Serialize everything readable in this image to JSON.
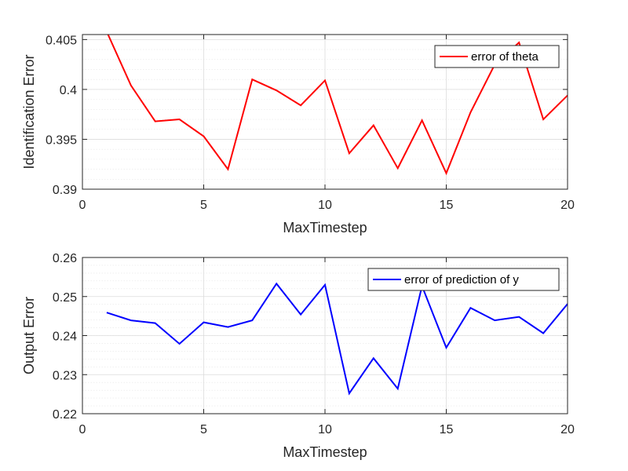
{
  "chart_data": [
    {
      "type": "line",
      "xlabel": "MaxTimestep",
      "ylabel": "Identification Error",
      "xlim": [
        0,
        20
      ],
      "ylim": [
        0.39,
        0.4055
      ],
      "xticks": [
        0,
        5,
        10,
        15,
        20
      ],
      "xtick_labels": [
        "0",
        "5",
        "10",
        "15",
        "20"
      ],
      "yticks": [
        0.39,
        0.395,
        0.4,
        0.405
      ],
      "ytick_labels": [
        "0.39",
        "0.395",
        "0.4",
        "0.405"
      ],
      "minor_grid_step": 0.001,
      "grid": true,
      "legend_position": "top-right",
      "series": [
        {
          "name": "error of theta",
          "color": "#ff0000",
          "x": [
            1,
            2,
            3,
            4,
            5,
            6,
            7,
            8,
            9,
            10,
            11,
            12,
            13,
            14,
            15,
            16,
            17,
            18,
            19,
            20
          ],
          "y": [
            0.4058,
            0.4004,
            0.3968,
            0.397,
            0.3953,
            0.392,
            0.401,
            0.3999,
            0.3984,
            0.4009,
            0.3936,
            0.3964,
            0.3921,
            0.3969,
            0.3916,
            0.3977,
            0.4025,
            0.4047,
            0.397,
            0.3994
          ]
        }
      ]
    },
    {
      "type": "line",
      "xlabel": "MaxTimestep",
      "ylabel": "Output Error",
      "xlim": [
        0,
        20
      ],
      "ylim": [
        0.22,
        0.26
      ],
      "xticks": [
        0,
        5,
        10,
        15,
        20
      ],
      "xtick_labels": [
        "0",
        "5",
        "10",
        "15",
        "20"
      ],
      "yticks": [
        0.22,
        0.23,
        0.24,
        0.25,
        0.26
      ],
      "ytick_labels": [
        "0.22",
        "0.23",
        "0.24",
        "0.25",
        "0.26"
      ],
      "minor_grid_step": 0.002,
      "grid": true,
      "legend_position": "top-right",
      "series": [
        {
          "name": "error of prediction of y",
          "color": "#0000ff",
          "x": [
            1,
            2,
            3,
            4,
            5,
            6,
            7,
            8,
            9,
            10,
            11,
            12,
            13,
            14,
            15,
            16,
            17,
            18,
            19,
            20
          ],
          "y": [
            0.2459,
            0.2439,
            0.2432,
            0.2379,
            0.2434,
            0.2422,
            0.2439,
            0.2533,
            0.2454,
            0.253,
            0.2252,
            0.2342,
            0.2264,
            0.2527,
            0.2369,
            0.2471,
            0.2439,
            0.2448,
            0.2406,
            0.2481
          ]
        }
      ]
    }
  ]
}
